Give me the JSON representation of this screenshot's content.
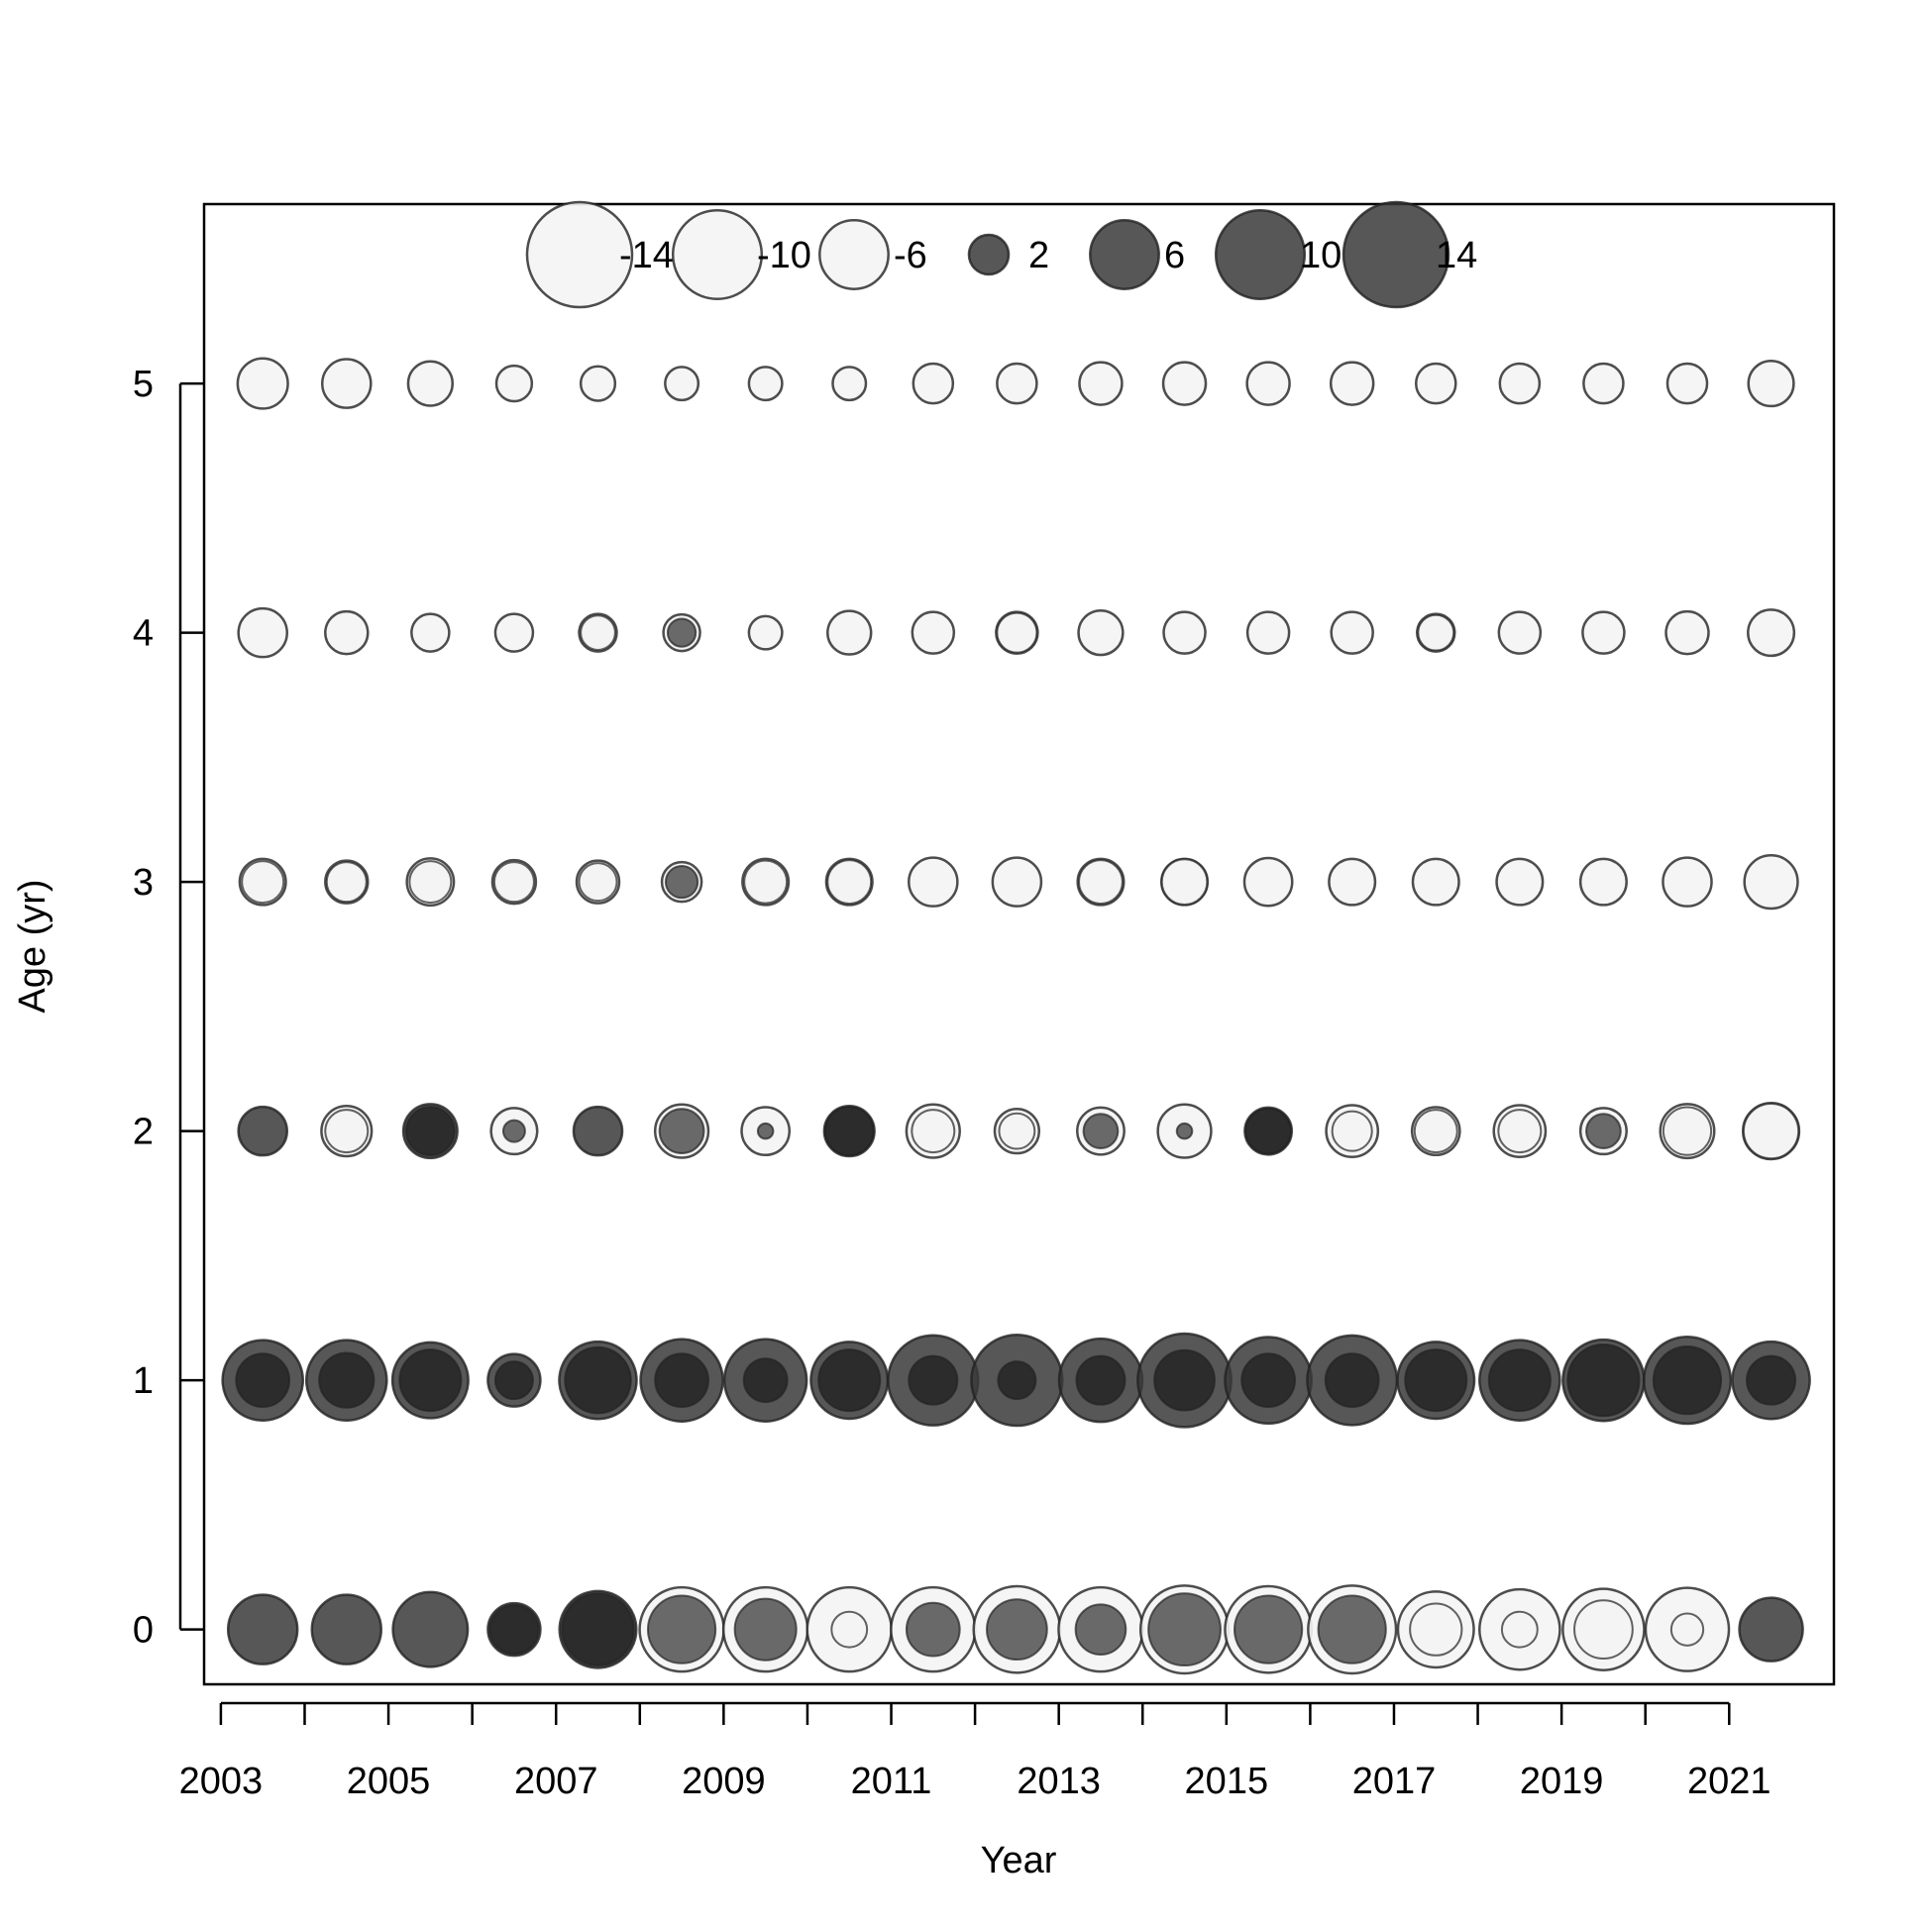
{
  "chart_data": {
    "type": "bubble",
    "title": "",
    "xlabel": "Year",
    "ylabel": "Age (yr)",
    "x_ticks": [
      2003,
      2005,
      2007,
      2009,
      2011,
      2013,
      2015,
      2017,
      2019,
      2021
    ],
    "x_minor_ticks": [
      2004,
      2006,
      2008,
      2010,
      2012,
      2014,
      2016,
      2018,
      2020
    ],
    "y_ticks": [
      0,
      1,
      2,
      3,
      4,
      5
    ],
    "xlim": [
      2002.8,
      2022.25
    ],
    "ylim": [
      -0.22,
      5.72
    ],
    "legend": {
      "placement": "top",
      "entries": [
        {
          "label": "-14",
          "value": -14
        },
        {
          "label": "-10",
          "value": -10
        },
        {
          "label": "-6",
          "value": -6
        },
        {
          "label": "2",
          "value": 2
        },
        {
          "label": "6",
          "value": 6
        },
        {
          "label": "10",
          "value": 10
        },
        {
          "label": "14",
          "value": 14
        }
      ]
    },
    "colors": {
      "positive_fill": "#3a3a3a",
      "negative_fill": "#f4f4f4",
      "stroke": "#222222"
    },
    "note": "Each bubble: outer value (size & fill sign) plus inner overlaid value (second series).",
    "years": [
      2003.5,
      2004.5,
      2005.5,
      2006.5,
      2007.5,
      2008.5,
      2009.5,
      2010.5,
      2011.5,
      2012.5,
      2013.5,
      2014.5,
      2015.5,
      2016.5,
      2017.5,
      2018.5,
      2019.5,
      2020.5,
      2021.5
    ],
    "series": [
      {
        "age": 5,
        "outer": [
          -3.2,
          -3.0,
          -2.5,
          -1.6,
          -1.5,
          -1.4,
          -1.4,
          -1.4,
          -2.0,
          -2.0,
          -2.3,
          -2.3,
          -2.3,
          -2.3,
          -2.0,
          -2.0,
          -2.0,
          -2.0,
          -2.6
        ],
        "inner": [
          -3.2,
          -3.0,
          -2.5,
          -1.6,
          -1.5,
          -1.4,
          -1.4,
          -1.4,
          -2.0,
          -2.0,
          -2.3,
          -2.3,
          -2.3,
          -2.3,
          -2.0,
          -2.0,
          -2.0,
          -2.0,
          -2.6
        ]
      },
      {
        "age": 4,
        "outer": [
          -3.0,
          -2.3,
          -1.8,
          -1.8,
          -1.8,
          -1.7,
          -1.4,
          -2.4,
          -2.2,
          -2.2,
          -2.5,
          -2.2,
          -2.2,
          -2.2,
          -1.8,
          -2.2,
          -2.2,
          -2.3,
          -2.7
        ],
        "inner": [
          -3.0,
          -2.3,
          -1.8,
          -1.8,
          -1.5,
          1.0,
          -1.4,
          -2.4,
          -2.2,
          -2.0,
          -2.5,
          -2.2,
          -2.2,
          -2.2,
          -1.6,
          -2.2,
          -2.2,
          -2.3,
          -2.7
        ]
      },
      {
        "age": 3,
        "outer": [
          -2.7,
          -2.3,
          -2.8,
          -2.4,
          -2.3,
          -2.0,
          -2.7,
          -2.7,
          -3.0,
          -3.0,
          -2.7,
          -2.7,
          -2.9,
          -2.7,
          -2.7,
          -2.7,
          -2.7,
          -3.0,
          -3.6
        ],
        "inner": [
          -2.2,
          -2.0,
          -2.2,
          -2.0,
          -1.8,
          1.3,
          -2.3,
          -2.4,
          -3.0,
          -3.0,
          -2.4,
          -2.6,
          -2.9,
          -2.7,
          -2.7,
          -2.7,
          -2.7,
          -3.0,
          -3.6
        ]
      },
      {
        "age": 2,
        "outer": [
          3.0,
          -3.2,
          3.7,
          -2.7,
          3.0,
          -3.6,
          -2.9,
          3.2,
          -3.6,
          -2.5,
          -2.8,
          -3.6,
          2.8,
          -3.4,
          -2.9,
          -3.4,
          -2.7,
          -3.7,
          -4.0
        ],
        "inner": [
          3.0,
          -2.3,
          3.0,
          0.6,
          3.0,
          2.5,
          0.3,
          3.0,
          -2.3,
          -1.6,
          1.5,
          0.3,
          2.6,
          -2.0,
          -2.3,
          -2.3,
          1.5,
          -2.9,
          -3.8
        ]
      },
      {
        "age": 1,
        "outer": [
          8.2,
          8.2,
          7.3,
          3.5,
          7.6,
          8.6,
          8.6,
          7.5,
          10.3,
          10.5,
          8.8,
          11.1,
          9.5,
          10.2,
          7.5,
          8.2,
          8.4,
          9.6,
          7.6
        ],
        "inner": [
          3.6,
          3.8,
          4.8,
          1.8,
          5.5,
          3.6,
          2.4,
          4.8,
          3.0,
          1.8,
          3.0,
          4.6,
          3.6,
          3.6,
          4.8,
          4.8,
          6.5,
          5.8,
          3.0
        ]
      },
      {
        "age": 0,
        "outer": [
          6.1,
          6.1,
          7.1,
          3.5,
          7.5,
          -9.0,
          -9.0,
          -9.0,
          -9.0,
          -9.5,
          -9.0,
          -9.8,
          -9.5,
          -9.8,
          -7.3,
          -8.2,
          -8.4,
          -8.8,
          5.1
        ],
        "inner": [
          6.1,
          6.1,
          7.1,
          3.0,
          6.6,
          5.8,
          4.8,
          -1.6,
          3.6,
          4.6,
          3.2,
          6.6,
          5.8,
          5.8,
          -3.4,
          -1.6,
          -4.3,
          -1.3,
          5.1
        ]
      }
    ]
  }
}
